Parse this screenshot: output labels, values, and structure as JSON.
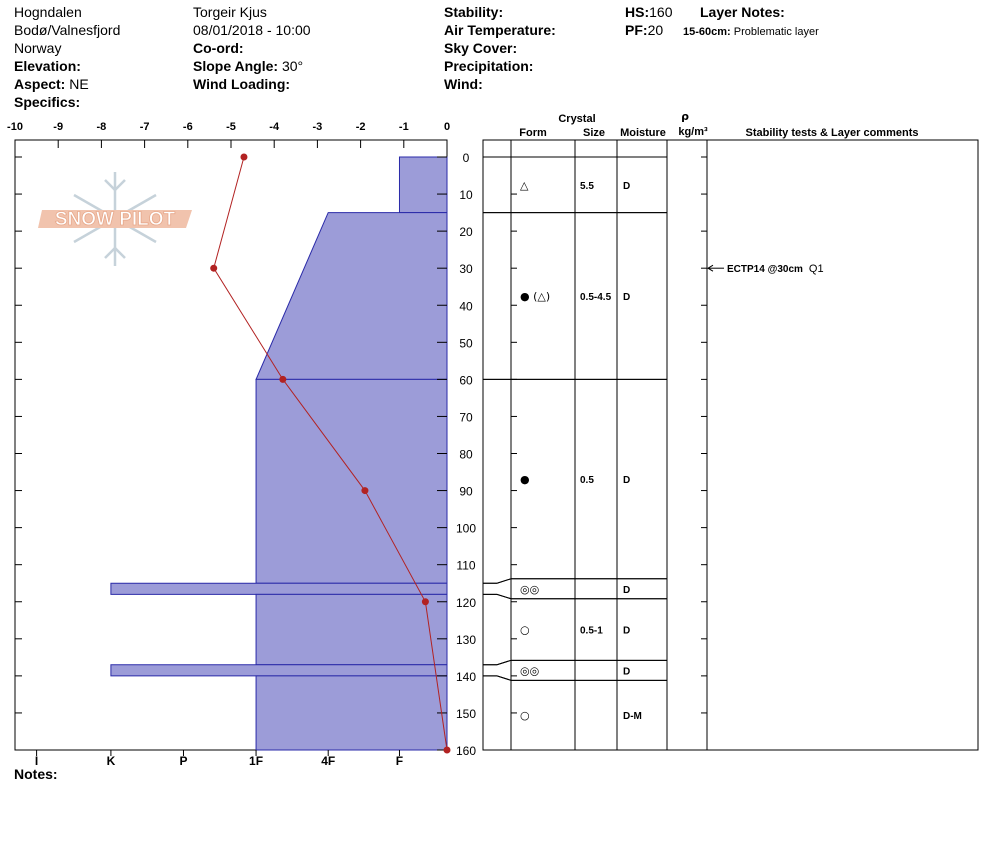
{
  "header": {
    "site": "Hogndalen",
    "area": "Bodø/Valnesfjord",
    "country": "Norway",
    "elevation": {
      "label": "Elevation:"
    },
    "aspect": {
      "label": "Aspect:",
      "value": "NE"
    },
    "specifics": {
      "label": "Specifics:"
    },
    "observer": "Torgeir Kjus",
    "datetime": "08/01/2018 - 10:00",
    "coord": {
      "label": "Co-ord:"
    },
    "slope_angle": {
      "label": "Slope Angle:",
      "value": "30°"
    },
    "wind_loading": {
      "label": "Wind Loading:"
    },
    "stability": {
      "label": "Stability:"
    },
    "air_temperature": {
      "label": "Air Temperature:"
    },
    "sky_cover": {
      "label": "Sky Cover:"
    },
    "precipitation": {
      "label": "Precipitation:"
    },
    "wind": {
      "label": "Wind:"
    },
    "hs": {
      "label": "HS:",
      "value": 160
    },
    "pf": {
      "label": "PF:",
      "value": 20
    },
    "layer_notes": {
      "label": "Layer Notes:",
      "range": "15-60cm:",
      "text": "Problematic layer"
    }
  },
  "logo": "SNOW PILOT",
  "notes": {
    "label": "Notes:"
  },
  "chart_data": {
    "type": "snow-profile",
    "xlim": [
      -10,
      0
    ],
    "xticks": [
      -10,
      -9,
      -8,
      -7,
      -6,
      -5,
      -4,
      -3,
      -2,
      -1,
      0
    ],
    "ylim": [
      0,
      160
    ],
    "yticks": [
      0,
      10,
      20,
      30,
      40,
      50,
      60,
      70,
      80,
      90,
      100,
      110,
      120,
      130,
      140,
      150,
      160
    ],
    "temperature": {
      "color": "#b22222",
      "depth": [
        0,
        30,
        60,
        90,
        120,
        160
      ],
      "values": [
        -4.7,
        -5.4,
        -3.8,
        -1.9,
        -0.5,
        0
      ]
    },
    "hardness": {
      "color": "#9c9cd8",
      "edge": "#2a2aa8",
      "ticks": [
        {
          "value": -9.5,
          "label": "I"
        },
        {
          "value": -7.78,
          "label": "K"
        },
        {
          "value": -6.1,
          "label": "P"
        },
        {
          "value": -4.42,
          "label": "1F"
        },
        {
          "value": -2.75,
          "label": "4F"
        },
        {
          "value": -1.1,
          "label": "F"
        }
      ]
    },
    "layers": [
      {
        "top": 0,
        "bottom": 15,
        "hardness_top": "F",
        "hardness_bottom": "F",
        "form": "△",
        "size": "5.5",
        "moisture": "D"
      },
      {
        "top": 15,
        "bottom": 60,
        "hardness_top": "4F",
        "hardness_bottom": "1F",
        "form": "● (△)",
        "size": "0.5-4.5",
        "moisture": "D"
      },
      {
        "top": 60,
        "bottom": 115,
        "hardness_top": "1F",
        "hardness_bottom": "1F",
        "form": "●",
        "size": "0.5",
        "moisture": "D"
      },
      {
        "top": 115,
        "bottom": 118,
        "hardness_top": "K",
        "hardness_bottom": "K",
        "form": "◎◎",
        "moisture": "D"
      },
      {
        "top": 118,
        "bottom": 137,
        "hardness_top": "1F",
        "hardness_bottom": "1F",
        "form": "○",
        "size": "0.5-1",
        "moisture": "D"
      },
      {
        "top": 137,
        "bottom": 140,
        "hardness_top": "K",
        "hardness_bottom": "K",
        "form": "◎◎",
        "moisture": "D"
      },
      {
        "top": 140,
        "bottom": 160,
        "hardness_top": "1F",
        "hardness_bottom": "1F",
        "form": "○",
        "moisture": "D-M"
      }
    ],
    "layer_table": {
      "crystal": "Crystal",
      "form": "Form",
      "size": "Size",
      "moisture": "Moisture",
      "density_symbol": "ρ",
      "density_unit": "kg/m³",
      "comments": "Stability tests & Layer comments"
    },
    "tests": [
      {
        "depth": 30,
        "text": "ECTP14 @30cm",
        "quality": "Q1"
      }
    ]
  }
}
